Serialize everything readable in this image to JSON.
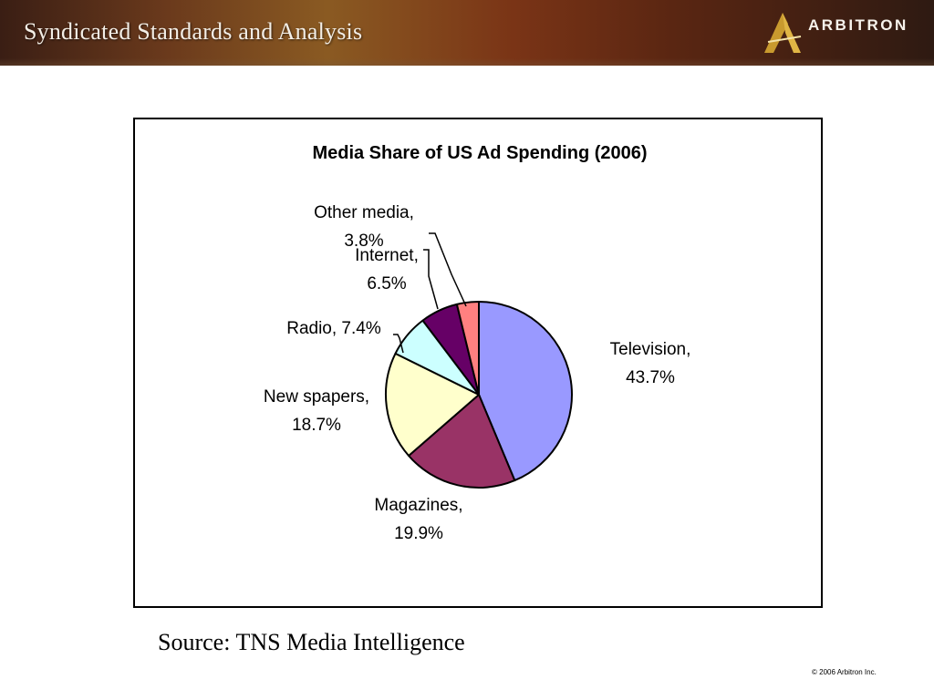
{
  "header": {
    "title": "Syndicated Standards and Analysis",
    "logo_text": "ARBITRON"
  },
  "chart_data": {
    "type": "pie",
    "title": "Media Share of US Ad Spending (2006)",
    "slices": [
      {
        "label_lines": [
          "Television,",
          "43.7%"
        ],
        "value": 43.7,
        "color": "#9999ff"
      },
      {
        "label_lines": [
          "Magazines,",
          "19.9%"
        ],
        "value": 19.9,
        "color": "#993366"
      },
      {
        "label_lines": [
          "New spapers,",
          "18.7%"
        ],
        "value": 18.7,
        "color": "#ffffcc"
      },
      {
        "label_lines": [
          "Radio, 7.4%"
        ],
        "value": 7.4,
        "color": "#ccffff"
      },
      {
        "label_lines": [
          "Internet,",
          "6.5%"
        ],
        "value": 6.5,
        "color": "#660066"
      },
      {
        "label_lines": [
          "Other media,",
          "3.8%"
        ],
        "value": 3.8,
        "color": "#ff8080"
      }
    ]
  },
  "footer": {
    "source": "Source: TNS Media Intelligence",
    "copyright": "© 2006 Arbitron Inc."
  }
}
